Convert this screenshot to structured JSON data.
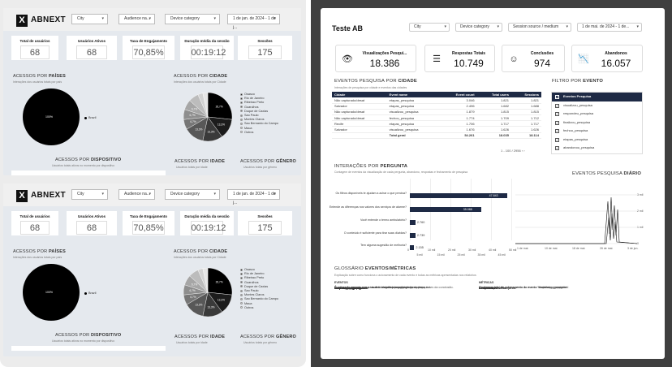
{
  "dashboard": {
    "brand": "ABNEXT",
    "filters": [
      "City",
      "Audience na...",
      "Device category",
      "1 de jan. de 2024 - 1 de j..."
    ],
    "kpis": [
      {
        "label": "Total de usuários",
        "value": "68"
      },
      {
        "label": "Usuários Ativos",
        "value": "68"
      },
      {
        "label": "Taxa de Engajamento",
        "value": "70,85%"
      },
      {
        "label": "Duração média da sessão",
        "value": "00:19:12"
      },
      {
        "label": "Sessões",
        "value": "175"
      }
    ],
    "countries": {
      "title_prefix": "ACESSOS POR ",
      "title_bold": "PAÍSES",
      "subtitle": "Interações dos usuários totais por país",
      "pie_label": "100%",
      "legend": "Brazil"
    },
    "cities": {
      "title_prefix": "ACESSOS POR ",
      "title_bold": "CIDADE",
      "subtitle": "Interações dos usuários totais por Cidade",
      "legend": [
        "Osasco",
        "Rio de Janeiro",
        "Ribeirao Preto",
        "Guarulhos",
        "Duque de Caxias",
        "Sao Paulo",
        "Montes Claros",
        "Sao Bernardo do Campo",
        "Maua",
        "Outros"
      ],
      "slices": [
        {
          "pct": 26.7,
          "label": "26,7%",
          "color": "#000000"
        },
        {
          "pct": 13.3,
          "label": "13,3%",
          "color": "#1c1c1c"
        },
        {
          "pct": 13.3,
          "label": "13,3%",
          "color": "#3a3a3a"
        },
        {
          "pct": 13.3,
          "label": "13,3%",
          "color": "#585858"
        },
        {
          "pct": 6.7,
          "label": "6,7%",
          "color": "#767676"
        },
        {
          "pct": 6.7,
          "label": "6,7%",
          "color": "#8e8e8e"
        },
        {
          "pct": 6.7,
          "label": "6,7%",
          "color": "#a6a6a6"
        },
        {
          "pct": 6.7,
          "label": "",
          "color": "#bcbcbc"
        },
        {
          "pct": 3.3,
          "label": "",
          "color": "#d2d2d2"
        },
        {
          "pct": 3.3,
          "label": "",
          "color": "#e6e6e6"
        }
      ]
    },
    "device": {
      "title_prefix": "ACESSOS POR ",
      "title_bold": "DISPOSITIVO",
      "subtitle": "Usuários totais ativos no momento por dispositivo"
    },
    "age": {
      "title_prefix": "ACESSOS POR ",
      "title_bold": "IDADE",
      "subtitle": "Usuários totais por idade"
    },
    "gender": {
      "title_prefix": "ACESSOS POR ",
      "title_bold": "GÊNERO",
      "subtitle": "Usuários totais por gênero"
    }
  },
  "report": {
    "title": "Teste AB",
    "filters": [
      "City",
      "Device category",
      "Session source / medium",
      "1 de mai. de 2024 - 1 de..."
    ],
    "kpis": [
      {
        "label": "Visualizações Pesqui...",
        "value": "18.386",
        "icon": "eye-icon",
        "glyph": "👁"
      },
      {
        "label": "Respostas Totais",
        "value": "10.749",
        "icon": "list-icon",
        "glyph": "☰"
      },
      {
        "label": "Conclusões",
        "value": "974",
        "icon": "smile-icon",
        "glyph": "☺"
      },
      {
        "label": "Abandonos",
        "value": "16.057",
        "icon": "chart-down-icon",
        "glyph": "📉"
      }
    ],
    "city_section": {
      "title_prefix": "EVENTOS PESQUISA ",
      "title_mid": "POR ",
      "title_bold": "CIDADE",
      "subtitle": "Interações de pesquisa por cidade e eventos das cidades"
    },
    "city_table": {
      "headers": [
        "Cidade",
        "Event name",
        "Event count",
        "Total users",
        "Sessions"
      ],
      "rows": [
        [
          "Não capturado/desat",
          "etapas_pesquisa",
          "3.046",
          "1.821",
          "1.821"
        ],
        [
          "Salvador",
          "etapas_pesquisa",
          "2.496",
          "1.682",
          "1.688"
        ],
        [
          "Não capturado/desat",
          "visualizou_pesquisa",
          "1.879",
          "1.815",
          "1.815"
        ],
        [
          "Não capturado/desat",
          "fechou_pesquisa",
          "1.774",
          "1.709",
          "1.712"
        ],
        [
          "Recife",
          "etapas_pesquisa",
          "1.706",
          "1.717",
          "1.717"
        ],
        [
          "Salvador",
          "visualizou_pesquisa",
          "1.676",
          "1.626",
          "1.626"
        ]
      ],
      "total": [
        "",
        "Total geral",
        "54.261",
        "18.035",
        "18.114"
      ],
      "pagination": "1 - 100 / 2956"
    },
    "event_filter": {
      "title_prefix": "FILTRO POR ",
      "title_bold": "EVENTO",
      "items": [
        "Eventos Pesquisa",
        "visualizou_pesquisa",
        "respondeu_pesquisa",
        "finalizou_pesquisa",
        "fechou_pesquisa",
        "etapas_pesquisa",
        "abandonou_pesquisa"
      ]
    },
    "questions": {
      "title_prefix": "INTERAÇÕES ",
      "title_mid": "POR ",
      "title_bold": "PERGUNTA",
      "subtitle": "Contagem de eventos da visualização de cada pergunta, abandono, respostas e fechamento de pesquisa",
      "bars": [
        {
          "label": "Os filtros disponíveis te ajudam a achar o que precisa?",
          "value": 47843,
          "display": "47.843"
        },
        {
          "label": "Entende as diferenças nos valores dos serviços de alarme?",
          "value": 35088,
          "display": "35.088"
        },
        {
          "label": "Você entende o termo ambulatório?",
          "value": 2760,
          "display": "2.760"
        },
        {
          "label": "O conteúdo é suficiente para tirar suas dúvidas?",
          "value": 2739,
          "display": "2.739"
        },
        {
          "label": "Tem alguma sugestão de melhoria?",
          "value": 2155,
          "display": "2.155"
        }
      ],
      "ticks": [
        "0",
        "10 mil",
        "20 mil",
        "30 mil",
        "40 mil",
        "50 mil"
      ],
      "ticks2": [
        "5 mil",
        "15 mil",
        "25 mil",
        "35 mil",
        "45 mil"
      ]
    },
    "daily": {
      "title_prefix": "EVENTOS PESQUISA ",
      "title_bold": "DIÁRIO",
      "yticks": [
        "3 mil",
        "2 mil",
        "1 mil",
        "0"
      ],
      "xticks": [
        "1 de mai.",
        "10 de mai.",
        "18 de mai.",
        "26 de mai.",
        "3 de jun."
      ]
    },
    "glossary": {
      "title_prefix": "GLOSSÁRIO ",
      "title_bold": "EVENTOS/MÉTRICAS",
      "subtitle": "Explicação sobre como funciona o acionamento de cada evento e todas as métricas apresentadas nos relatórios",
      "events_header": "EVENTOS",
      "metrics_header": "MÉTRICAS",
      "events": [
        {
          "name": "visualizou_pesquisa:",
          "desc": "É acionado sempre que o usuário visualiza o modal de pesquisa."
        },
        {
          "name": "etapas_pesquisa:",
          "desc": "É acionado sempre que o usuário visualiza uma pergunta da pesquisa."
        },
        {
          "name": "respondeu_pesquisa:",
          "desc": "É acionado sempre que o usuário responde a pergunta."
        },
        {
          "name": "fechou_pesquisa:",
          "desc": "É acionado sempre que o usuário fecha a pesquisa."
        },
        {
          "name": "abandonou_pesquisa:",
          "desc": "É acionado quando o usuário fecha a pesquisa em qualquer etapa antes da conclusão."
        },
        {
          "name": "finalizou_pesquisa:",
          "desc": "É acionado sempre que o usuário conclui a pesquisa com sucesso."
        }
      ],
      "metrics": [
        {
          "name": "Visualizações Pesquisa:",
          "desc": "Contagem total de acionamento do evento 'visualizou_pesquisa'."
        },
        {
          "name": "Respostas Totais:",
          "desc": "Contagem total de acionamento do evento 'respondeu_pesquisa'."
        },
        {
          "name": "Conclusões:",
          "desc": "Contagem total de acionamento do evento 'finalizou_pesquisa'."
        },
        {
          "name": "Abandonos:",
          "desc": "Contagem total de acionamento do evento 'abandonou_pesquisa'."
        }
      ]
    }
  }
}
